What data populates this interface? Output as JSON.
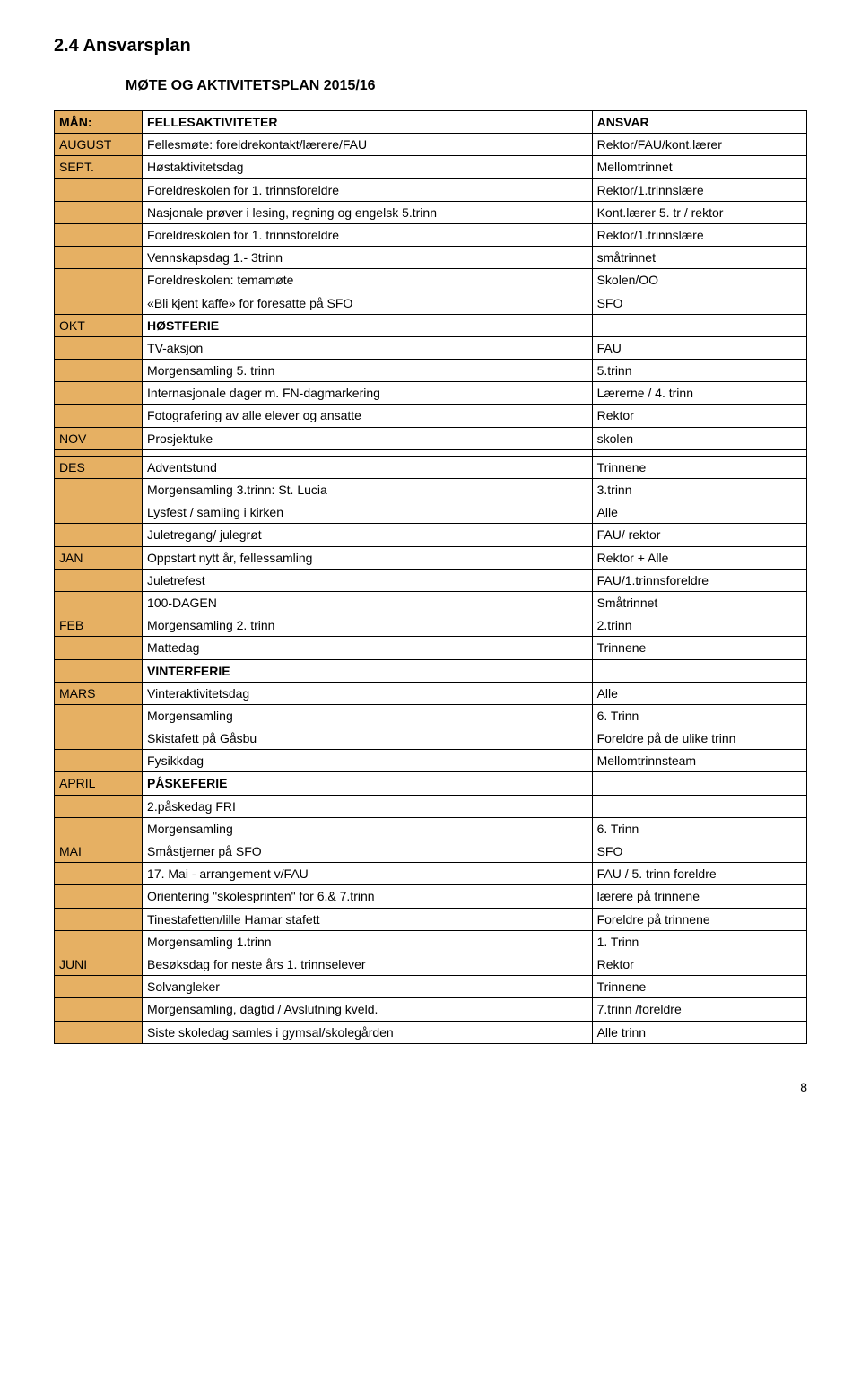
{
  "heading": "2.4  Ansvarsplan",
  "subheading": "MØTE OG AKTIVITETSPLAN 2015/16",
  "columns": [
    "MÅN:",
    "FELLESAKTIVITETER",
    "ANSVAR"
  ],
  "rows": [
    {
      "c1": "AUGUST",
      "c2": "Fellesmøte: foreldrekontakt/lærere/FAU",
      "c3": "Rektor/FAU/kont.lærer"
    },
    {
      "c1": "SEPT.",
      "c2": "Høstaktivitetsdag",
      "c3": "Mellomtrinnet"
    },
    {
      "c1": "",
      "c2": "Foreldreskolen for 1. trinnsforeldre",
      "c3": "Rektor/1.trinnslære"
    },
    {
      "c1": "",
      "c2": "Nasjonale prøver i lesing, regning og engelsk 5.trinn",
      "c3": "Kont.lærer 5. tr / rektor"
    },
    {
      "c1": "",
      "c2": "Foreldreskolen for 1. trinnsforeldre",
      "c3": "Rektor/1.trinnslære"
    },
    {
      "c1": "",
      "c2": "Vennskapsdag 1.- 3trinn",
      "c3": "småtrinnet"
    },
    {
      "c1": "",
      "c2": "Foreldreskolen: temamøte",
      "c3": "Skolen/OO"
    },
    {
      "c1": "",
      "c2": "«Bli kjent kaffe» for foresatte på SFO",
      "c3": "SFO"
    },
    {
      "c1": "OKT",
      "c2": "HØSTFERIE",
      "c3": "",
      "c2bold": true
    },
    {
      "c1": "",
      "c2": "TV-aksjon",
      "c3": "FAU"
    },
    {
      "c1": "",
      "c2": "Morgensamling 5. trinn",
      "c3": "5.trinn"
    },
    {
      "c1": "",
      "c2": "Internasjonale dager m. FN-dagmarkering",
      "c3": "Lærerne / 4. trinn"
    },
    {
      "c1": "",
      "c2": "Fotografering av alle elever og ansatte",
      "c3": "Rektor"
    },
    {
      "c1": "NOV",
      "c2": "Prosjektuke",
      "c3": "skolen"
    },
    {
      "c1": "",
      "c2": "",
      "c3": ""
    },
    {
      "c1": "DES",
      "c2": "Adventstund",
      "c3": "Trinnene"
    },
    {
      "c1": "",
      "c2": "Morgensamling 3.trinn: St. Lucia",
      "c3": "3.trinn"
    },
    {
      "c1": "",
      "c2": "Lysfest / samling i kirken",
      "c3": "Alle"
    },
    {
      "c1": "",
      "c2": "Juletregang/ julegrøt",
      "c3": "FAU/ rektor"
    },
    {
      "c1": "JAN",
      "c2": "Oppstart nytt år, fellessamling",
      "c3": "Rektor + Alle"
    },
    {
      "c1": "",
      "c2": "Juletrefest",
      "c3": "FAU/1.trinnsforeldre"
    },
    {
      "c1": "",
      "c2": "100-DAGEN",
      "c3": "Småtrinnet"
    },
    {
      "c1": "FEB",
      "c2": "Morgensamling 2. trinn",
      "c3": "2.trinn"
    },
    {
      "c1": "",
      "c2": "Mattedag",
      "c3": "Trinnene"
    },
    {
      "c1": "",
      "c2": "VINTERFERIE",
      "c3": "",
      "c2bold": true
    },
    {
      "c1": "MARS",
      "c2": "Vinteraktivitetsdag",
      "c3": "Alle"
    },
    {
      "c1": "",
      "c2": "Morgensamling",
      "c3": "6. Trinn"
    },
    {
      "c1": "",
      "c2": "Skistafett på Gåsbu",
      "c3": "Foreldre på de ulike trinn"
    },
    {
      "c1": "",
      "c2": "Fysikkdag",
      "c3": "Mellomtrinnsteam"
    },
    {
      "c1": "APRIL",
      "c2": "PÅSKEFERIE",
      "c3": "",
      "c2bold": true
    },
    {
      "c1": "",
      "c2": "2.påskedag FRI",
      "c3": ""
    },
    {
      "c1": "",
      "c2": "Morgensamling",
      "c3": "6. Trinn"
    },
    {
      "c1": "MAI",
      "c2": "Småstjerner på SFO",
      "c3": "SFO"
    },
    {
      "c1": "",
      "c2": "17. Mai - arrangement v/FAU",
      "c3": "FAU / 5. trinn foreldre"
    },
    {
      "c1": "",
      "c2": "Orientering \"skolesprinten\" for 6.& 7.trinn",
      "c3": "lærere på trinnene"
    },
    {
      "c1": "",
      "c2": "Tinestafetten/lille Hamar stafett",
      "c3": "Foreldre på trinnene"
    },
    {
      "c1": "",
      "c2": "Morgensamling 1.trinn",
      "c3": "1. Trinn"
    },
    {
      "c1": "JUNI",
      "c2": "Besøksdag for neste års 1. trinnselever",
      "c3": "Rektor"
    },
    {
      "c1": "",
      "c2": "Solvangleker",
      "c3": "Trinnene"
    },
    {
      "c1": "",
      "c2": "Morgensamling, dagtid /  Avslutning kveld.",
      "c3": "7.trinn /foreldre"
    },
    {
      "c1": "",
      "c2": "Siste skoledag samles i gymsal/skolegården",
      "c3": "Alle trinn"
    }
  ],
  "page_number": "8",
  "accent_color": "#e6b063"
}
